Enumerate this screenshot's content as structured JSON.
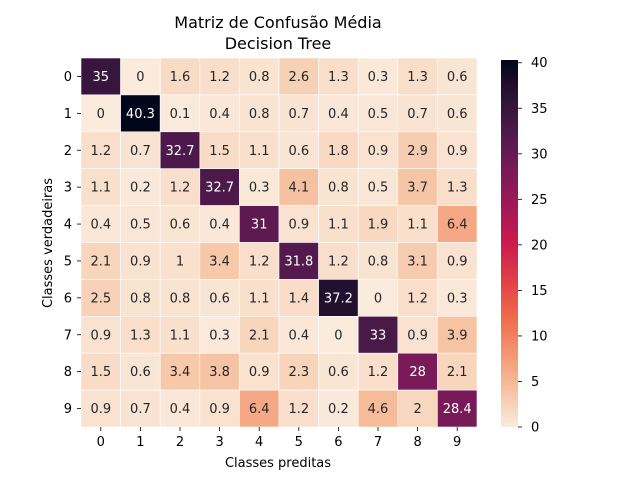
{
  "chart_data": {
    "type": "heatmap",
    "title": "Matriz de Confusão Média",
    "subtitle": "Decision Tree",
    "xlabel": "Classes preditas",
    "ylabel": "Classes verdadeiras",
    "x_categories": [
      "0",
      "1",
      "2",
      "3",
      "4",
      "5",
      "6",
      "7",
      "8",
      "9"
    ],
    "y_categories": [
      "0",
      "1",
      "2",
      "3",
      "4",
      "5",
      "6",
      "7",
      "8",
      "9"
    ],
    "values": [
      [
        35,
        0,
        1.6,
        1.2,
        0.8,
        2.6,
        1.3,
        0.3,
        1.3,
        0.6
      ],
      [
        0,
        40.3,
        0.1,
        0.4,
        0.8,
        0.7,
        0.4,
        0.5,
        0.7,
        0.6
      ],
      [
        1.2,
        0.7,
        32.7,
        1.5,
        1.1,
        0.6,
        1.8,
        0.9,
        2.9,
        0.9
      ],
      [
        1.1,
        0.2,
        1.2,
        32.7,
        0.3,
        4.1,
        0.8,
        0.5,
        3.7,
        1.3
      ],
      [
        0.4,
        0.5,
        0.6,
        0.4,
        31,
        0.9,
        1.1,
        1.9,
        1.1,
        6.4
      ],
      [
        2.1,
        0.9,
        1,
        3.4,
        1.2,
        31.8,
        1.2,
        0.8,
        3.1,
        0.9
      ],
      [
        2.5,
        0.8,
        0.8,
        0.6,
        1.1,
        1.4,
        37.2,
        0,
        1.2,
        0.3
      ],
      [
        0.9,
        1.3,
        1.1,
        0.3,
        2.1,
        0.4,
        0,
        33,
        0.9,
        3.9
      ],
      [
        1.5,
        0.6,
        3.4,
        3.8,
        0.9,
        2.3,
        0.6,
        1.2,
        28,
        2.1
      ],
      [
        0.9,
        0.7,
        0.4,
        0.9,
        6.4,
        1.2,
        0.2,
        4.6,
        2,
        28.4
      ]
    ],
    "vmin": 0,
    "vmax": 40.3,
    "colormap": "rocket_r",
    "colorbar_ticks": [
      "0",
      "5",
      "10",
      "15",
      "20",
      "25",
      "30",
      "35",
      "40"
    ],
    "annotate": true,
    "grid": false
  }
}
